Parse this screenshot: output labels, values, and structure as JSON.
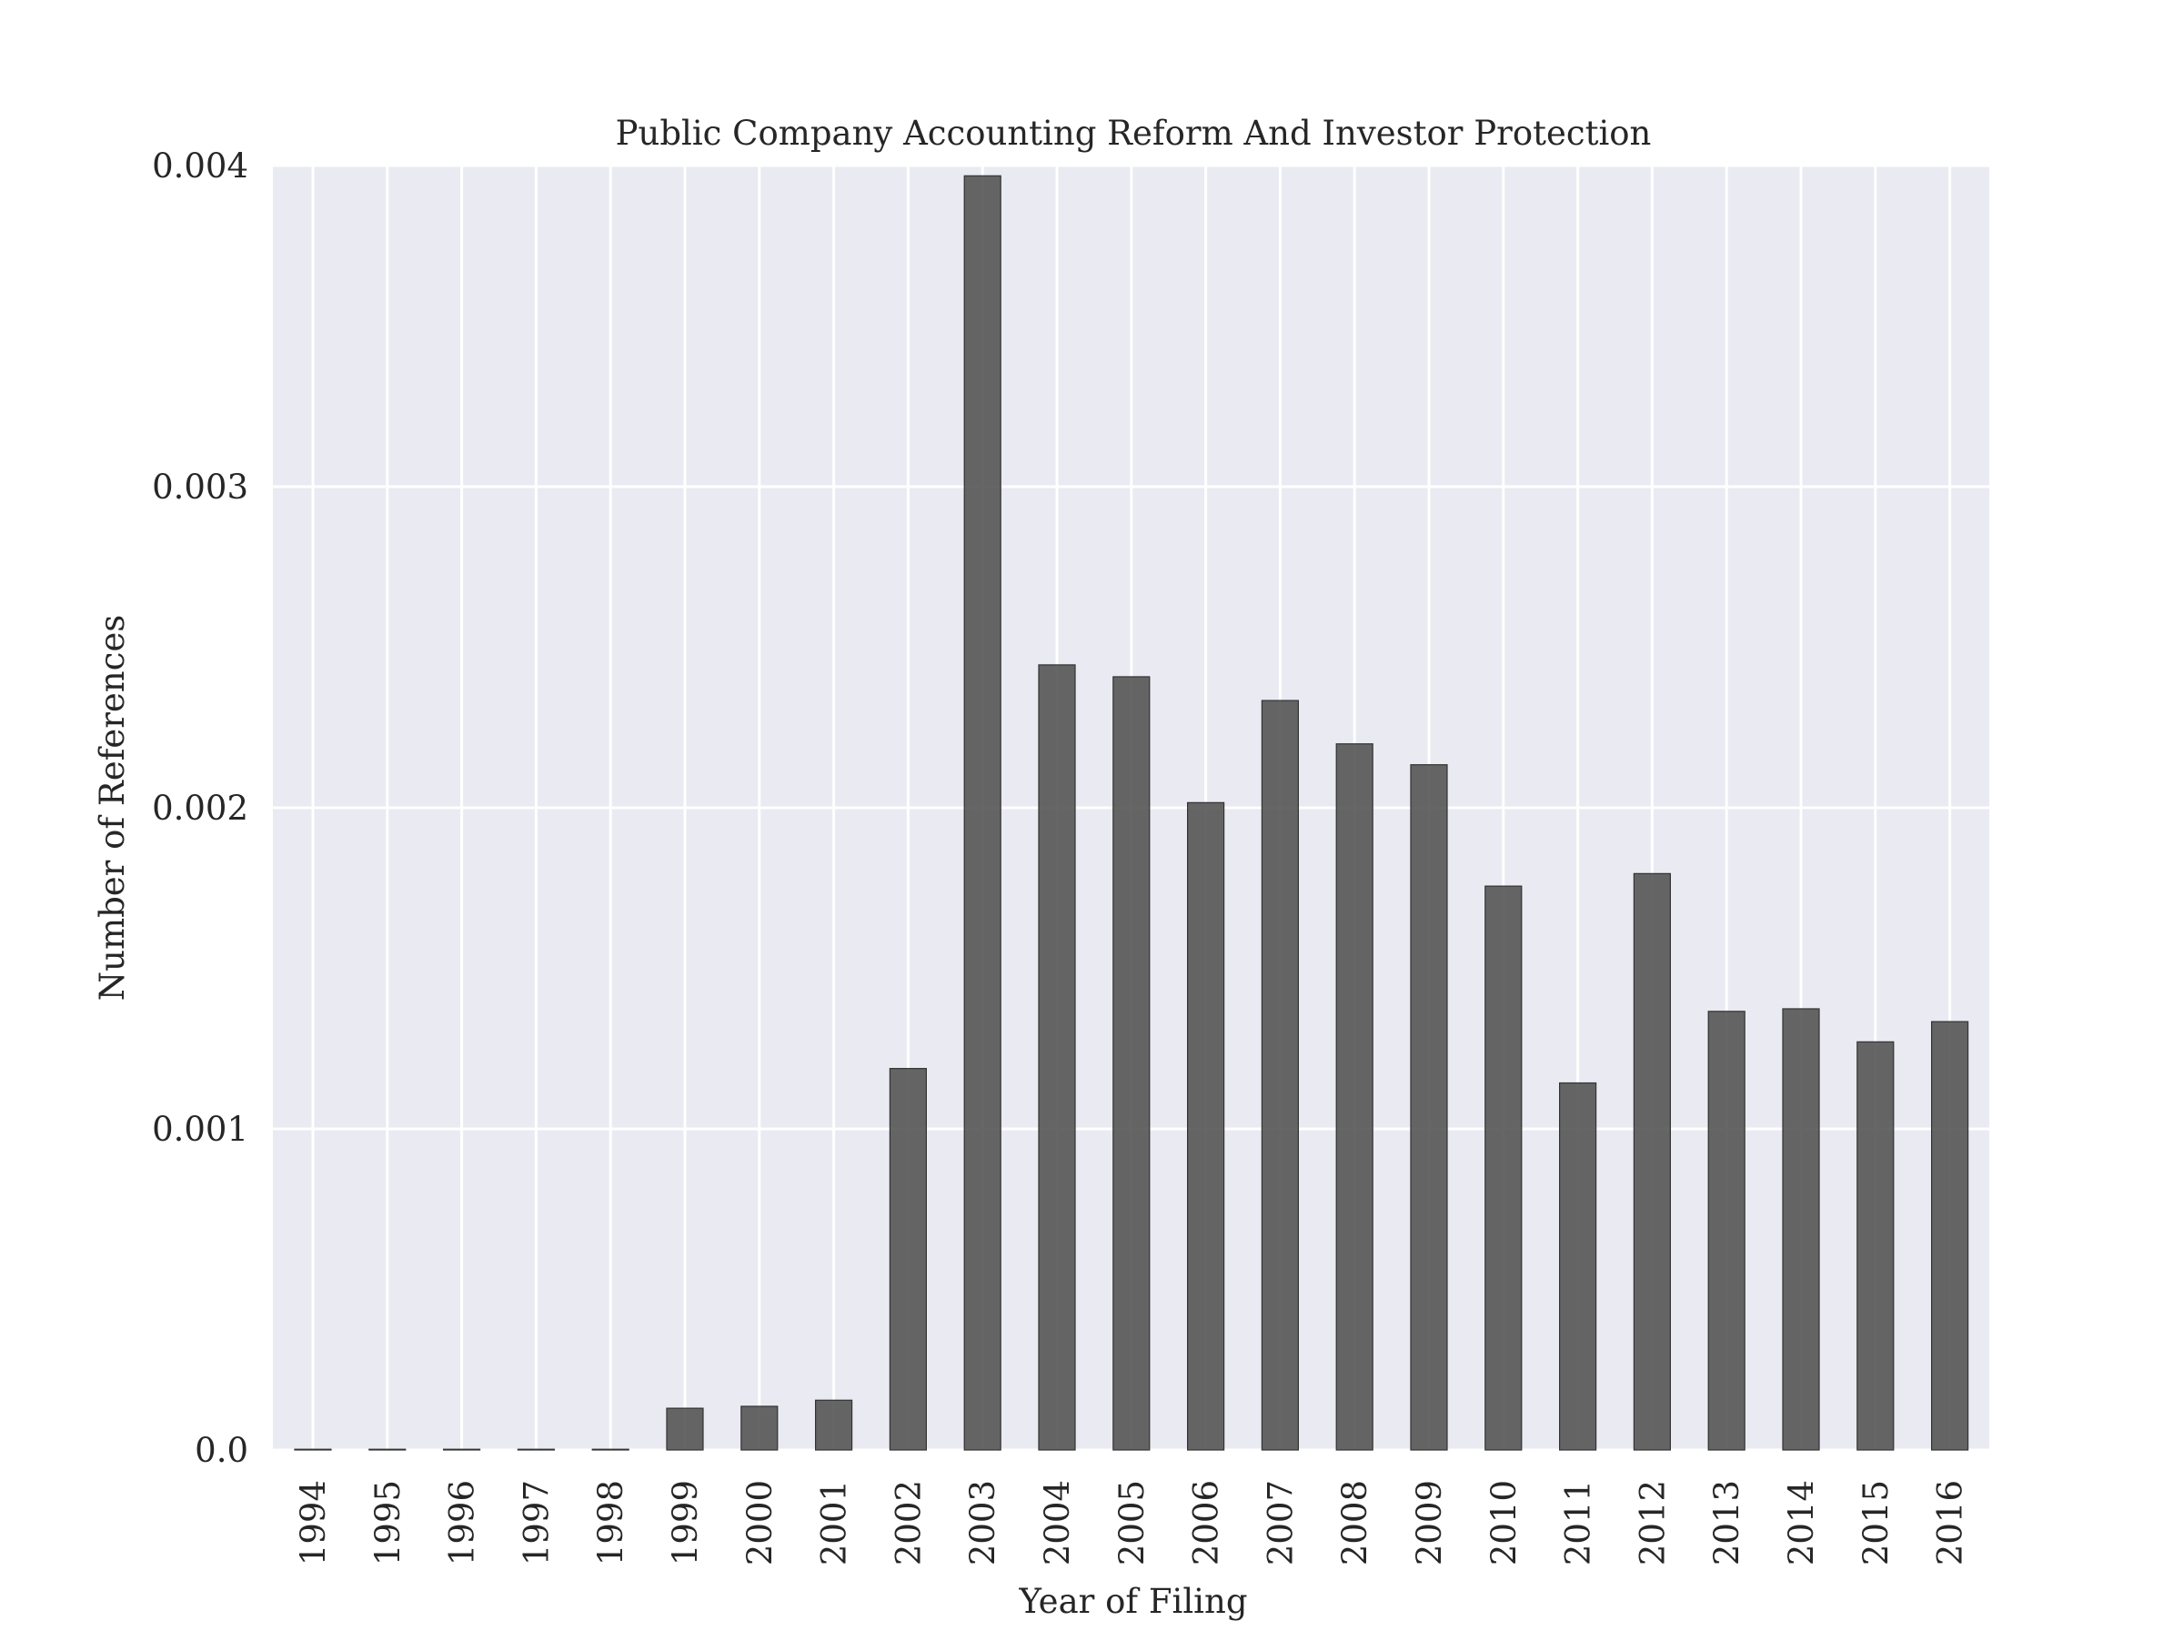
{
  "chart_data": {
    "type": "bar",
    "title": "Public Company Accounting Reform And Investor Protection",
    "xlabel": "Year of Filing",
    "ylabel": "Number of References",
    "categories": [
      "1994",
      "1995",
      "1996",
      "1997",
      "1998",
      "1999",
      "2000",
      "2001",
      "2002",
      "2003",
      "2004",
      "2005",
      "2006",
      "2007",
      "2008",
      "2009",
      "2010",
      "2011",
      "2012",
      "2013",
      "2014",
      "2015",
      "2016"
    ],
    "values": [
      0,
      0,
      0,
      0,
      0,
      0.00013,
      0.000136,
      0.000155,
      0.001188,
      0.003968,
      0.002445,
      0.002408,
      0.002016,
      0.002334,
      0.002199,
      0.002134,
      0.001756,
      0.001143,
      0.001795,
      0.001366,
      0.001374,
      0.001271,
      0.001334
    ],
    "ylim": [
      0,
      0.004
    ],
    "yticks": [
      {
        "value": 0,
        "label": "0.0"
      },
      {
        "value": 0.001,
        "label": "0.001"
      },
      {
        "value": 0.002,
        "label": "0.002"
      },
      {
        "value": 0.003,
        "label": "0.003"
      },
      {
        "value": 0.004,
        "label": "0.004"
      }
    ],
    "grid": true,
    "colors": {
      "bar": "#555555",
      "bar_edge": "#333333",
      "plot_background": "#eaeaf2",
      "grid": "#ffffff",
      "text": "#262626"
    }
  }
}
